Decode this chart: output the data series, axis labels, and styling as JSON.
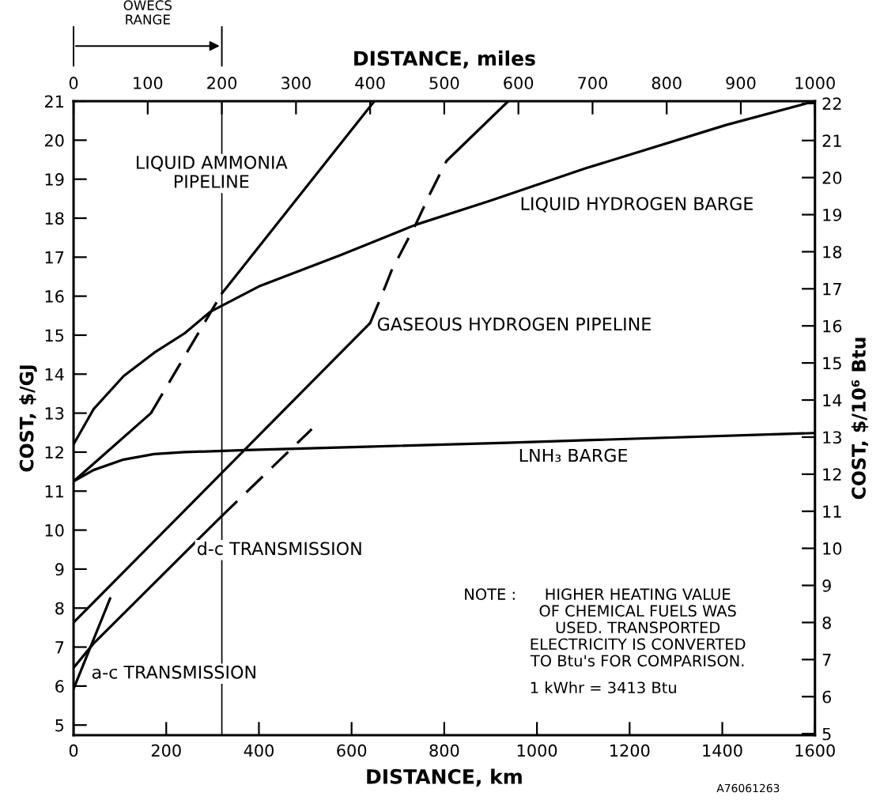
{
  "chart_data": {
    "type": "line",
    "xlabel": "DISTANCE, km",
    "ylabel": "COST, $/GJ",
    "y2label": "COST, $/10⁶ Btu",
    "x2label": "DISTANCE, miles",
    "xlim": [
      0,
      1600
    ],
    "xticks": [
      0,
      200,
      400,
      600,
      800,
      1000,
      1200,
      1400,
      1600
    ],
    "x2lim": [
      0,
      1000
    ],
    "x2ticks": [
      0,
      100,
      200,
      300,
      400,
      500,
      600,
      700,
      800,
      900,
      1000
    ],
    "ylim": [
      4.74,
      21
    ],
    "yticks": [
      5,
      6,
      7,
      8,
      9,
      10,
      11,
      12,
      13,
      14,
      15,
      16,
      17,
      18,
      19,
      20,
      21
    ],
    "y2lim": [
      4.96,
      22.06
    ],
    "y2ticks": [
      5,
      6,
      7,
      8,
      9,
      10,
      11,
      12,
      13,
      14,
      15,
      16,
      17,
      18,
      19,
      20,
      21,
      22
    ],
    "series": [
      {
        "color": "#000000",
        "line_style": "solid",
        "x": [
          0,
          43,
          108,
          174,
          240,
          295,
          400,
          576,
          738,
          900,
          1103,
          1408,
          1600
        ],
        "values": [
          12.2,
          13.1,
          13.95,
          14.55,
          15.05,
          15.6,
          16.25,
          17.05,
          17.83,
          18.45,
          19.27,
          20.39,
          21
        ]
      },
      {
        "color": "#000000",
        "line_style": "solid",
        "x": [
          0,
          167
        ],
        "values": [
          11.25,
          13.0
        ]
      },
      {
        "color": "#000000",
        "line_style": "dashed",
        "x": [
          167,
          320
        ],
        "values": [
          13.0,
          16.07
        ]
      },
      {
        "color": "#000000",
        "line_style": "solid",
        "x": [
          320,
          649
        ],
        "values": [
          16.07,
          21
        ]
      },
      {
        "color": "#000000",
        "line_style": "solid",
        "x": [
          0,
          43,
          108,
          174,
          240,
          370,
          632,
          935,
          1600
        ],
        "values": [
          11.25,
          11.54,
          11.81,
          11.95,
          12.0,
          12.05,
          12.14,
          12.24,
          12.49
        ]
      },
      {
        "color": "#000000",
        "line_style": "solid",
        "x": [
          0,
          640
        ],
        "values": [
          7.63,
          15.31
        ]
      },
      {
        "color": "#000000",
        "line_style": "dashed",
        "x": [
          640,
          662,
          686,
          738,
          771,
          805
        ],
        "values": [
          15.31,
          15.93,
          16.65,
          17.83,
          18.67,
          19.47
        ]
      },
      {
        "color": "#000000",
        "line_style": "solid",
        "x": [
          805,
          938
        ],
        "values": [
          19.47,
          21
        ]
      },
      {
        "color": "#000000",
        "line_style": "solid",
        "x": [
          0,
          43,
          318
        ],
        "values": [
          6.47,
          7.09,
          10.34
        ]
      },
      {
        "color": "#000000",
        "line_style": "dashed",
        "x": [
          318,
          514
        ],
        "values": [
          10.34,
          12.59
        ]
      },
      {
        "color": "#000000",
        "line_style": "solid",
        "x": [
          0,
          79
        ],
        "values": [
          5.93,
          8.25
        ]
      }
    ],
    "ref_lines": [
      {
        "axis": "x",
        "value": 320,
        "color": "#000000"
      }
    ],
    "annotations": [
      "LIQUID AMMONIA\nPIPELINE",
      "LIQUID HYDROGEN BARGE",
      "GASEOUS HYDROGEN PIPELINE",
      "LNH₃ BARGE",
      "d-c TRANSMISSION",
      "a-c TRANSMISSION",
      "NOTE :",
      "HIGHER HEATING VALUE\nOF CHEMICAL FUELS WAS\nUSED. TRANSPORTED\nELECTRICITY IS CONVERTED\nTO Btu's FOR COMPARISON.",
      "1 kWhr = 3413 Btu",
      "A76061263",
      "OWECS\nRANGE"
    ]
  }
}
